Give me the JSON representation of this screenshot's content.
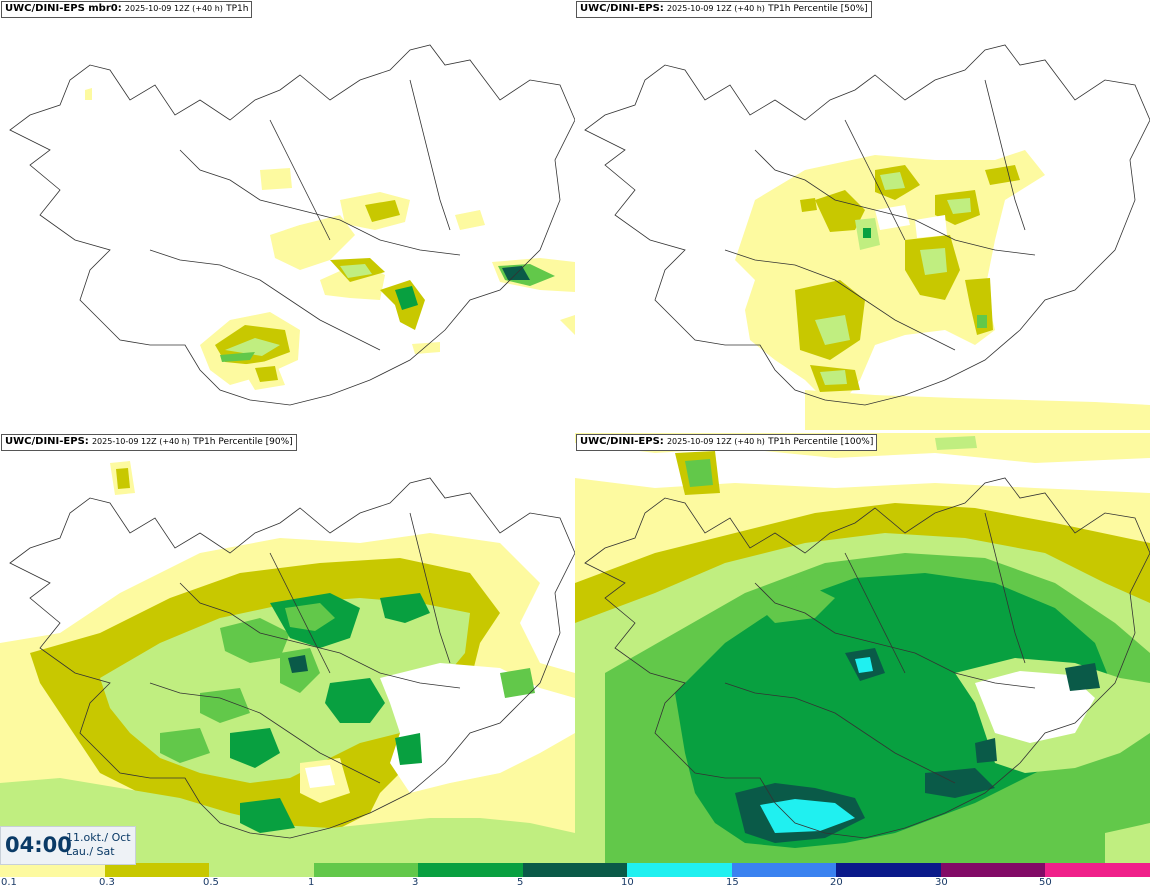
{
  "panels": [
    {
      "id": "mbr0",
      "model": "UWC/DINI-EPS mbr0:",
      "run": "2025-10-09 12Z (+40 h)",
      "field": "TP1h"
    },
    {
      "id": "p50",
      "model": "UWC/DINI-EPS:",
      "run": "2025-10-09 12Z (+40 h)",
      "field": "TP1h Percentile [50%]"
    },
    {
      "id": "p90",
      "model": "UWC/DINI-EPS:",
      "run": "2025-10-09 12Z (+40 h)",
      "field": "TP1h Percentile [90%]"
    },
    {
      "id": "p100",
      "model": "UWC/DINI-EPS:",
      "run": "2025-10-09 12Z (+40 h)",
      "field": "TP1h Percentile [100%]"
    }
  ],
  "valid_time": {
    "time": "04:00",
    "date_line1": "11.okt./ Oct",
    "date_line2": "Lau./ Sat"
  },
  "colorbar": {
    "ticks": [
      "0.1",
      "0.3",
      "0.5",
      "1",
      "3",
      "5",
      "10",
      "15",
      "20",
      "30",
      "50"
    ],
    "colors": [
      "#fdfaa0",
      "#c8c800",
      "#c0ee80",
      "#62c84a",
      "#08a040",
      "#0a5a48",
      "#20f0f0",
      "#3a82f0",
      "#0a1a8a",
      "#820a66",
      "#f0208a",
      "#e8141e"
    ]
  },
  "colors": {
    "light_yellow": "#fdfaa0",
    "olive": "#c8c800",
    "light_green": "#c0ee80",
    "mid_green": "#62c84a",
    "green": "#08a040",
    "dark_green": "#0a5a48",
    "cyan": "#20f0f0"
  }
}
